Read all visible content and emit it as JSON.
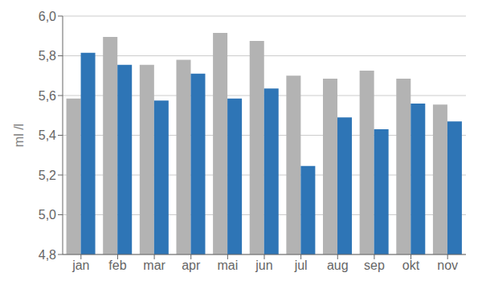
{
  "chart_data": {
    "type": "bar",
    "ylabel": "ml /l",
    "categories": [
      "jan",
      "feb",
      "mar",
      "apr",
      "mai",
      "jun",
      "jul",
      "aug",
      "sep",
      "okt",
      "nov"
    ],
    "series": [
      {
        "color": "#b3b3b3",
        "values": [
          5.585,
          5.895,
          5.755,
          5.78,
          5.915,
          5.875,
          5.7,
          5.685,
          5.725,
          5.685,
          5.555
        ]
      },
      {
        "color": "#2e75b6",
        "values": [
          5.815,
          5.755,
          5.575,
          5.71,
          5.585,
          5.635,
          5.245,
          5.49,
          5.43,
          5.56,
          5.47
        ]
      }
    ],
    "ylim": [
      4.8,
      6.0
    ],
    "yticks": [
      {
        "value": 4.8,
        "label": "4,8"
      },
      {
        "value": 5.0,
        "label": "5,0"
      },
      {
        "value": 5.2,
        "label": "5,2"
      },
      {
        "value": 5.4,
        "label": "5,4"
      },
      {
        "value": 5.6,
        "label": "5,6"
      },
      {
        "value": 5.8,
        "label": "5,8"
      },
      {
        "value": 6.0,
        "label": "6,0"
      }
    ],
    "grid": true
  }
}
